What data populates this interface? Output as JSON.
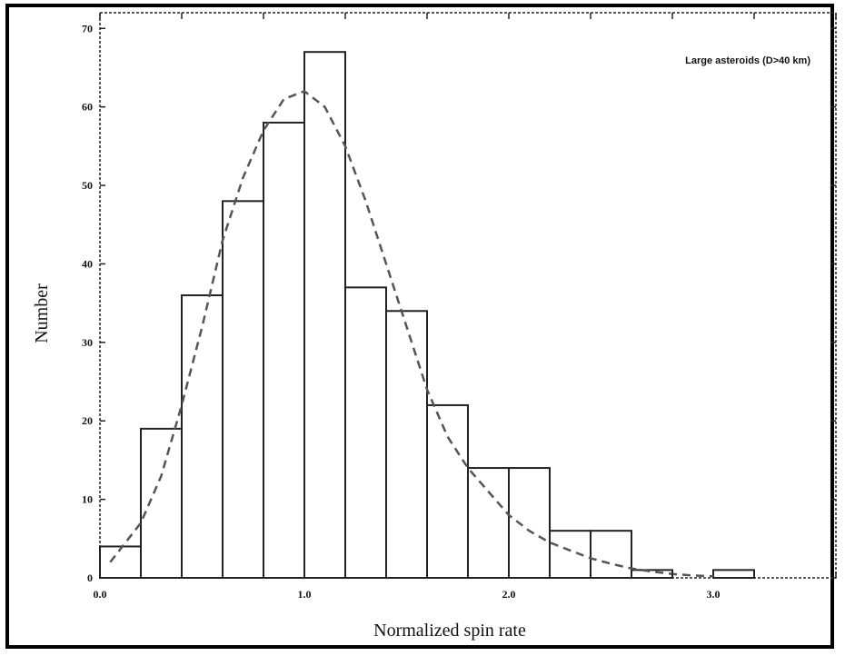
{
  "chart_data": {
    "type": "bar",
    "xlabel": "Normalized spin rate",
    "ylabel": "Number",
    "xlim": [
      0,
      3.6
    ],
    "ylim": [
      0,
      72
    ],
    "x_ticks": [
      0.0,
      0.4,
      0.8,
      1.2,
      1.6,
      2.0,
      2.4,
      2.8,
      3.2,
      3.6
    ],
    "x_tick_labels": [
      "0.0",
      "1.0",
      "2.0",
      "3.0"
    ],
    "x_tick_label_values": [
      0.0,
      1.0,
      2.0,
      3.0
    ],
    "y_ticks": [
      0,
      10,
      20,
      30,
      40,
      50,
      60,
      70
    ],
    "y_tick_labels": [
      "0",
      "10",
      "20",
      "30",
      "40",
      "50",
      "60",
      "70"
    ],
    "grid": false,
    "legend_position": "top-right",
    "annotation": "Large asteroids (D>40 km)",
    "bins": [
      {
        "x0": 0.0,
        "x1": 0.2,
        "value": 4
      },
      {
        "x0": 0.2,
        "x1": 0.4,
        "value": 19
      },
      {
        "x0": 0.4,
        "x1": 0.6,
        "value": 36
      },
      {
        "x0": 0.6,
        "x1": 0.8,
        "value": 48
      },
      {
        "x0": 0.8,
        "x1": 1.0,
        "value": 58
      },
      {
        "x0": 1.0,
        "x1": 1.2,
        "value": 67
      },
      {
        "x0": 1.2,
        "x1": 1.4,
        "value": 37
      },
      {
        "x0": 1.4,
        "x1": 1.6,
        "value": 34
      },
      {
        "x0": 1.6,
        "x1": 1.8,
        "value": 22
      },
      {
        "x0": 1.8,
        "x1": 2.0,
        "value": 14
      },
      {
        "x0": 2.0,
        "x1": 2.2,
        "value": 14
      },
      {
        "x0": 2.2,
        "x1": 2.4,
        "value": 6
      },
      {
        "x0": 2.4,
        "x1": 2.6,
        "value": 6
      },
      {
        "x0": 2.6,
        "x1": 2.8,
        "value": 1
      },
      {
        "x0": 2.8,
        "x1": 3.0,
        "value": 0
      },
      {
        "x0": 3.0,
        "x1": 3.2,
        "value": 1
      }
    ],
    "fit_curve": {
      "style": "dashed",
      "points": [
        [
          0.05,
          2
        ],
        [
          0.2,
          7
        ],
        [
          0.3,
          13
        ],
        [
          0.4,
          22
        ],
        [
          0.5,
          32
        ],
        [
          0.6,
          43
        ],
        [
          0.7,
          51
        ],
        [
          0.8,
          57
        ],
        [
          0.9,
          61
        ],
        [
          1.0,
          62
        ],
        [
          1.1,
          60
        ],
        [
          1.2,
          55
        ],
        [
          1.3,
          48
        ],
        [
          1.4,
          40
        ],
        [
          1.5,
          32
        ],
        [
          1.6,
          24
        ],
        [
          1.7,
          18
        ],
        [
          1.8,
          14
        ],
        [
          1.9,
          11
        ],
        [
          2.0,
          8
        ],
        [
          2.1,
          6
        ],
        [
          2.2,
          4.5
        ],
        [
          2.3,
          3.5
        ],
        [
          2.4,
          2.5
        ],
        [
          2.5,
          1.8
        ],
        [
          2.6,
          1.2
        ],
        [
          2.7,
          0.8
        ],
        [
          2.8,
          0.5
        ],
        [
          2.9,
          0.3
        ],
        [
          3.0,
          0.2
        ]
      ]
    }
  }
}
